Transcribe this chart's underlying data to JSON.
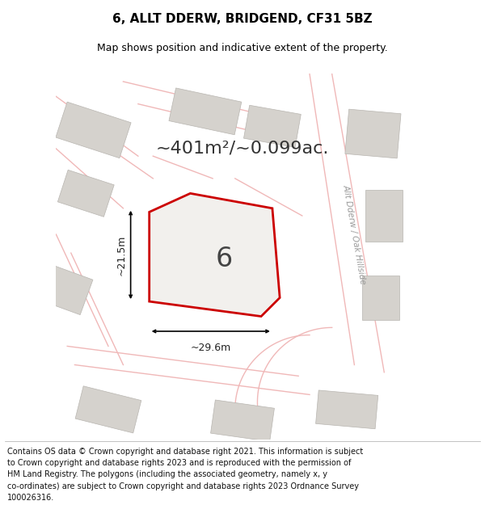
{
  "title": "6, ALLT DDERW, BRIDGEND, CF31 5BZ",
  "subtitle": "Map shows position and indicative extent of the property.",
  "area_text": "~401m²/~0.099ac.",
  "label_number": "6",
  "dim_width": "~29.6m",
  "dim_height": "~21.5m",
  "road_label": "Allt Dderw / Oak Hillside",
  "footer_lines": [
    "Contains OS data © Crown copyright and database right 2021. This information is subject",
    "to Crown copyright and database rights 2023 and is reproduced with the permission of",
    "HM Land Registry. The polygons (including the associated geometry, namely x, y",
    "co-ordinates) are subject to Crown copyright and database rights 2023 Ordnance Survey",
    "100026316."
  ],
  "map_bg": "#eeebe6",
  "property_fill": "#f2f0ed",
  "property_edge": "#cc0000",
  "road_color": "#f0b8b8",
  "building_fill": "#d5d2cd",
  "building_edge": "#b8b5b0",
  "title_fontsize": 11,
  "subtitle_fontsize": 9,
  "footer_fontsize": 7,
  "area_fontsize": 16,
  "label_fontsize": 24
}
